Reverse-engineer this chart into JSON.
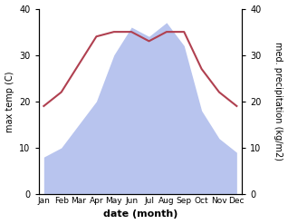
{
  "months": [
    "Jan",
    "Feb",
    "Mar",
    "Apr",
    "May",
    "Jun",
    "Jul",
    "Aug",
    "Sep",
    "Oct",
    "Nov",
    "Dec"
  ],
  "temperature": [
    19,
    22,
    28,
    34,
    35,
    35,
    33,
    35,
    35,
    27,
    22,
    19
  ],
  "rainfall": [
    8,
    10,
    15,
    20,
    30,
    36,
    34,
    37,
    32,
    18,
    12,
    9
  ],
  "temp_color": "#b04050",
  "rain_color": "#b8c4ee",
  "temp_ylim": [
    0,
    40
  ],
  "rain_ylim": [
    0,
    40
  ],
  "yticks": [
    0,
    10,
    20,
    30,
    40
  ],
  "xlabel": "date (month)",
  "ylabel_left": "max temp (C)",
  "ylabel_right": "med. precipitation (kg/m2)",
  "figsize": [
    3.18,
    2.47
  ],
  "dpi": 100
}
